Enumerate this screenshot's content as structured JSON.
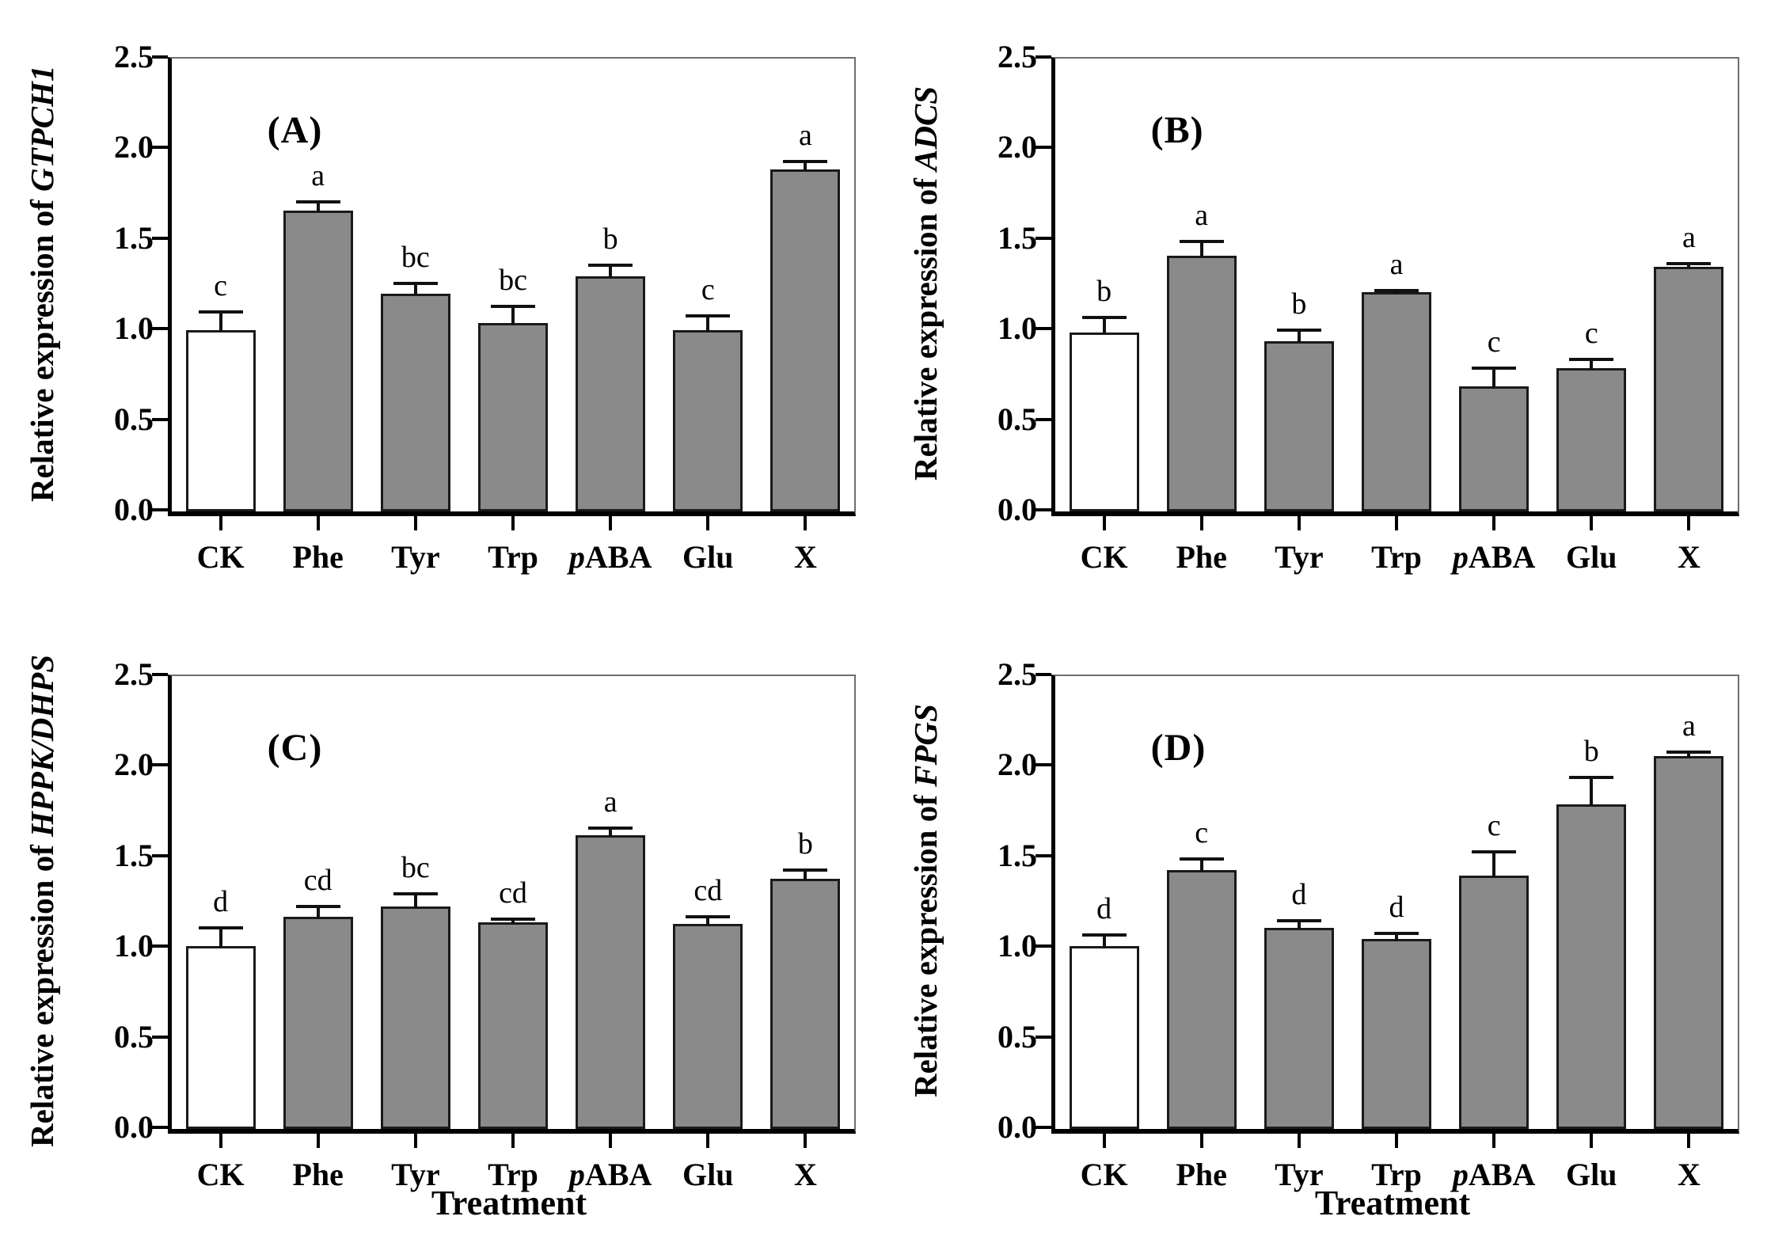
{
  "figure": {
    "xlabel": "Treatment",
    "ylabel_prefix": "Relative expression of",
    "categories": [
      "CK",
      "Phe",
      "Tyr",
      "Trp",
      "pABA",
      "Glu",
      "X"
    ],
    "yticks": [
      "0.0",
      "0.5",
      "1.0",
      "1.5",
      "2.0",
      "2.5"
    ],
    "colors": {
      "control_bar_fill": "#ffffff",
      "treatment_bar_fill": "#8a8a8a",
      "bar_border": "#1a1a1a",
      "axis": "#000000",
      "top_right_spine": "#6e6e6e"
    }
  },
  "chart_data": [
    {
      "type": "bar",
      "panel": "A",
      "tag": "(A)",
      "gene": "GTPCH1",
      "ylabel": "Relative expression of GTPCH1",
      "xlabel": "",
      "ylim": [
        0,
        2.5
      ],
      "grid": false,
      "categories": [
        "CK",
        "Phe",
        "Tyr",
        "Trp",
        "pABA",
        "Glu",
        "X"
      ],
      "values": [
        1.0,
        1.66,
        1.2,
        1.04,
        1.3,
        1.0,
        1.89
      ],
      "errors": [
        0.1,
        0.05,
        0.06,
        0.09,
        0.06,
        0.08,
        0.04
      ],
      "sig_letters": [
        "c",
        "a",
        "bc",
        "bc",
        "b",
        "c",
        "a"
      ]
    },
    {
      "type": "bar",
      "panel": "B",
      "tag": "(B)",
      "gene": "ADCS",
      "ylabel": "Relative expression of ADCS",
      "xlabel": "",
      "ylim": [
        0,
        2.5
      ],
      "grid": false,
      "categories": [
        "CK",
        "Phe",
        "Tyr",
        "Trp",
        "pABA",
        "Glu",
        "X"
      ],
      "values": [
        0.99,
        1.41,
        0.94,
        1.21,
        0.69,
        0.79,
        1.35
      ],
      "errors": [
        0.08,
        0.08,
        0.06,
        0.01,
        0.1,
        0.05,
        0.02
      ],
      "sig_letters": [
        "b",
        "a",
        "b",
        "a",
        "c",
        "c",
        "a"
      ]
    },
    {
      "type": "bar",
      "panel": "C",
      "tag": "(C)",
      "gene": "HPPK/DHPS",
      "ylabel": "Relative expression of HPPK/DHPS",
      "xlabel": "Treatment",
      "ylim": [
        0,
        2.5
      ],
      "grid": false,
      "categories": [
        "CK",
        "Phe",
        "Tyr",
        "Trp",
        "pABA",
        "Glu",
        "X"
      ],
      "values": [
        1.01,
        1.17,
        1.23,
        1.14,
        1.62,
        1.13,
        1.38
      ],
      "errors": [
        0.1,
        0.06,
        0.07,
        0.02,
        0.04,
        0.04,
        0.05
      ],
      "sig_letters": [
        "d",
        "cd",
        "bc",
        "cd",
        "a",
        "cd",
        "b"
      ]
    },
    {
      "type": "bar",
      "panel": "D",
      "tag": "(D)",
      "gene": "FPGS",
      "ylabel": "Relative expression of FPGS",
      "xlabel": "Treatment",
      "ylim": [
        0,
        2.5
      ],
      "grid": false,
      "categories": [
        "CK",
        "Phe",
        "Tyr",
        "Trp",
        "pABA",
        "Glu",
        "X"
      ],
      "values": [
        1.01,
        1.43,
        1.11,
        1.05,
        1.4,
        1.79,
        2.06
      ],
      "errors": [
        0.06,
        0.06,
        0.04,
        0.03,
        0.13,
        0.15,
        0.02
      ],
      "sig_letters": [
        "d",
        "c",
        "d",
        "d",
        "c",
        "b",
        "a"
      ]
    }
  ]
}
